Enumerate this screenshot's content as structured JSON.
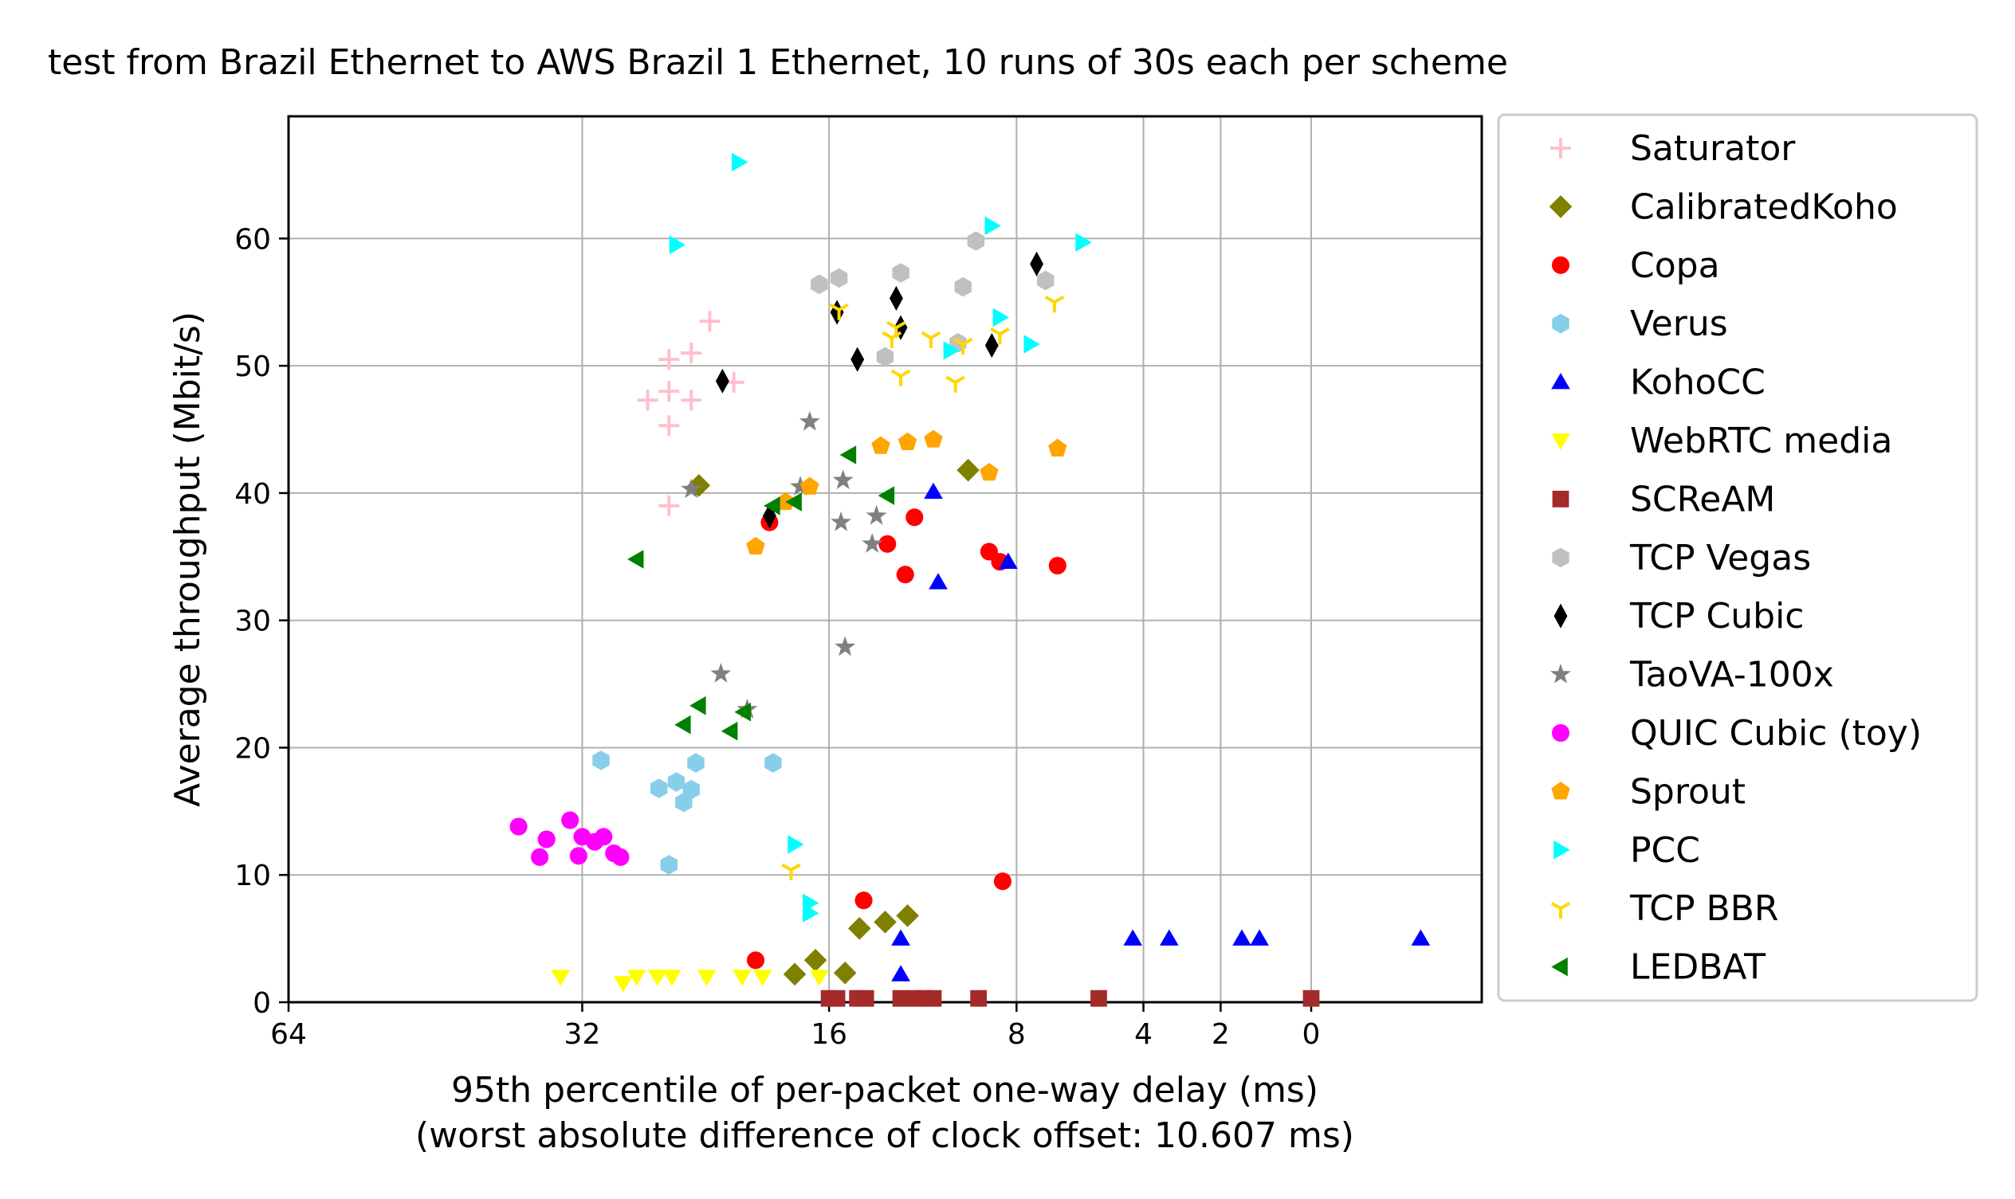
{
  "chart_data": {
    "type": "scatter",
    "title": "test from Brazil Ethernet to AWS Brazil 1 Ethernet, 10 runs of 30s each per scheme",
    "xlabel": "95th percentile of per-packet one-way delay (ms)",
    "xlabel_note": "(worst absolute difference of clock offset: 10.607 ms)",
    "ylabel": "Average throughput (Mbit/s)",
    "x_scale": "log2 of (delay + 10.607), axis reversed",
    "x_offset": 10.607,
    "x_ticks": [
      64,
      32,
      16,
      8,
      4,
      2,
      0
    ],
    "x_tick_labels": [
      "64",
      "32",
      "16",
      "8",
      "4",
      "2",
      "0"
    ],
    "y_ticks": [
      0,
      10,
      20,
      30,
      40,
      50,
      60
    ],
    "y_tick_labels": [
      "0",
      "10",
      "20",
      "30",
      "40",
      "50",
      "60"
    ],
    "ylim": [
      0,
      69.6
    ],
    "grid": true,
    "legend_position": "outside-right",
    "series": [
      {
        "name": "Saturator",
        "marker": "plus",
        "color": "#ffc0cb",
        "points": [
          [
            27.0,
            47.3
          ],
          [
            25.5,
            48.0
          ],
          [
            24.0,
            47.3
          ],
          [
            25.5,
            45.3
          ],
          [
            25.5,
            50.5
          ],
          [
            24.0,
            51.0
          ],
          [
            22.8,
            53.5
          ],
          [
            21.3,
            48.7
          ],
          [
            25.5,
            39.0
          ]
        ]
      },
      {
        "name": "CalibratedKoho",
        "marker": "diamond",
        "color": "#808000",
        "points": [
          [
            23.5,
            40.6
          ],
          [
            9.8,
            41.8
          ],
          [
            17.8,
            2.2
          ],
          [
            16.7,
            3.3
          ],
          [
            15.2,
            2.3
          ],
          [
            14.5,
            5.8
          ],
          [
            13.3,
            6.3
          ],
          [
            12.3,
            6.8
          ]
        ]
      },
      {
        "name": "Copa",
        "marker": "circle",
        "color": "#ff0000",
        "points": [
          [
            19.2,
            37.7
          ],
          [
            12.0,
            38.1
          ],
          [
            13.2,
            36.0
          ],
          [
            12.4,
            33.6
          ],
          [
            9.0,
            35.4
          ],
          [
            8.6,
            34.6
          ],
          [
            6.6,
            34.3
          ],
          [
            14.3,
            8.0
          ],
          [
            8.5,
            9.5
          ],
          [
            20.0,
            3.3
          ]
        ]
      },
      {
        "name": "Verus",
        "marker": "hexagon",
        "color": "#87ceeb",
        "points": [
          [
            30.5,
            19.0
          ],
          [
            26.2,
            16.8
          ],
          [
            25.0,
            17.3
          ],
          [
            23.7,
            18.8
          ],
          [
            24.0,
            16.7
          ],
          [
            24.5,
            15.7
          ],
          [
            19.0,
            18.8
          ],
          [
            25.5,
            10.8
          ]
        ]
      },
      {
        "name": "KohoCC",
        "marker": "triangle-up",
        "color": "#0000ff",
        "points": [
          [
            11.2,
            40.1
          ],
          [
            11.0,
            33.0
          ],
          [
            8.3,
            34.6
          ],
          [
            12.6,
            5.0
          ],
          [
            12.6,
            2.2
          ],
          [
            4.3,
            5.0
          ],
          [
            3.3,
            5.0
          ],
          [
            1.5,
            5.0
          ],
          [
            1.1,
            5.0
          ],
          [
            -2.0,
            5.0
          ]
        ]
      },
      {
        "name": "WebRTC media",
        "marker": "triangle-down",
        "color": "#ffff00",
        "points": [
          [
            33.8,
            2.0
          ],
          [
            28.8,
            1.5
          ],
          [
            27.8,
            2.0
          ],
          [
            26.3,
            2.0
          ],
          [
            25.3,
            2.0
          ],
          [
            23.0,
            2.0
          ],
          [
            20.8,
            2.0
          ],
          [
            19.6,
            2.0
          ],
          [
            16.5,
            2.0
          ]
        ]
      },
      {
        "name": "SCReAM",
        "marker": "square",
        "color": "#a52a2a",
        "points": [
          [
            16.0,
            0.3
          ],
          [
            15.6,
            0.3
          ],
          [
            14.6,
            0.3
          ],
          [
            14.2,
            0.3
          ],
          [
            12.6,
            0.3
          ],
          [
            12.0,
            0.3
          ],
          [
            11.6,
            0.3
          ],
          [
            11.2,
            0.3
          ],
          [
            9.4,
            0.3
          ],
          [
            5.3,
            0.3
          ],
          [
            0.0,
            0.3
          ]
        ]
      },
      {
        "name": "TCP Vegas",
        "marker": "hexagon",
        "color": "#c0c0c0",
        "points": [
          [
            16.5,
            56.4
          ],
          [
            15.5,
            56.9
          ],
          [
            12.6,
            57.3
          ],
          [
            10.0,
            56.2
          ],
          [
            9.5,
            59.8
          ],
          [
            7.0,
            56.7
          ],
          [
            13.3,
            50.7
          ],
          [
            10.2,
            51.8
          ]
        ]
      },
      {
        "name": "TCP Cubic",
        "marker": "thin-diamond",
        "color": "#000000",
        "points": [
          [
            15.6,
            54.2
          ],
          [
            12.8,
            55.3
          ],
          [
            12.6,
            53.0
          ],
          [
            14.6,
            50.5
          ],
          [
            8.9,
            51.6
          ],
          [
            7.3,
            58.0
          ],
          [
            22.0,
            48.8
          ],
          [
            19.2,
            38.2
          ]
        ]
      },
      {
        "name": "TaoVA-100x",
        "marker": "star",
        "color": "#808080",
        "points": [
          [
            17.0,
            45.6
          ],
          [
            15.3,
            41.0
          ],
          [
            17.5,
            40.5
          ],
          [
            24.0,
            40.3
          ],
          [
            15.4,
            37.7
          ],
          [
            13.7,
            38.2
          ],
          [
            13.9,
            36.0
          ],
          [
            15.2,
            27.9
          ],
          [
            22.1,
            25.8
          ],
          [
            20.5,
            23.0
          ]
        ]
      },
      {
        "name": "QUIC Cubic (toy)",
        "marker": "circle",
        "color": "#ff00ff",
        "points": [
          [
            37.5,
            13.8
          ],
          [
            35.0,
            12.8
          ],
          [
            35.6,
            11.4
          ],
          [
            33.0,
            14.3
          ],
          [
            32.0,
            13.0
          ],
          [
            31.0,
            12.6
          ],
          [
            30.3,
            13.0
          ],
          [
            29.5,
            11.7
          ],
          [
            32.3,
            11.5
          ],
          [
            29.0,
            11.4
          ]
        ]
      },
      {
        "name": "Sprout",
        "marker": "pentagon",
        "color": "#ffa500",
        "points": [
          [
            13.5,
            43.7
          ],
          [
            12.3,
            44.0
          ],
          [
            11.2,
            44.2
          ],
          [
            9.0,
            41.6
          ],
          [
            6.6,
            43.5
          ],
          [
            17.0,
            40.5
          ],
          [
            18.3,
            39.3
          ],
          [
            20.0,
            35.8
          ]
        ]
      },
      {
        "name": "PCC",
        "marker": "triangle-right",
        "color": "#00ffff",
        "points": [
          [
            21.0,
            66.0
          ],
          [
            25.0,
            59.5
          ],
          [
            8.9,
            61.0
          ],
          [
            5.8,
            59.7
          ],
          [
            8.6,
            53.8
          ],
          [
            7.5,
            51.7
          ],
          [
            10.5,
            51.2
          ],
          [
            17.8,
            12.4
          ],
          [
            17.0,
            7.8
          ],
          [
            17.0,
            7.0
          ]
        ]
      },
      {
        "name": "TCP BBR",
        "marker": "tri-down",
        "color": "#ffd700",
        "points": [
          [
            15.5,
            54.4
          ],
          [
            12.8,
            53.0
          ],
          [
            13.0,
            52.2
          ],
          [
            11.3,
            52.2
          ],
          [
            10.0,
            51.7
          ],
          [
            8.6,
            52.5
          ],
          [
            6.7,
            55.0
          ],
          [
            12.6,
            49.2
          ],
          [
            10.3,
            48.7
          ],
          [
            18.0,
            10.4
          ]
        ]
      },
      {
        "name": "LEDBAT",
        "marker": "triangle-left",
        "color": "#008000",
        "points": [
          [
            15.0,
            43.0
          ],
          [
            13.2,
            39.8
          ],
          [
            19.0,
            39.0
          ],
          [
            17.8,
            39.3
          ],
          [
            27.8,
            34.8
          ],
          [
            23.5,
            23.3
          ],
          [
            20.7,
            22.8
          ],
          [
            21.5,
            21.3
          ],
          [
            24.5,
            21.8
          ]
        ]
      }
    ]
  }
}
